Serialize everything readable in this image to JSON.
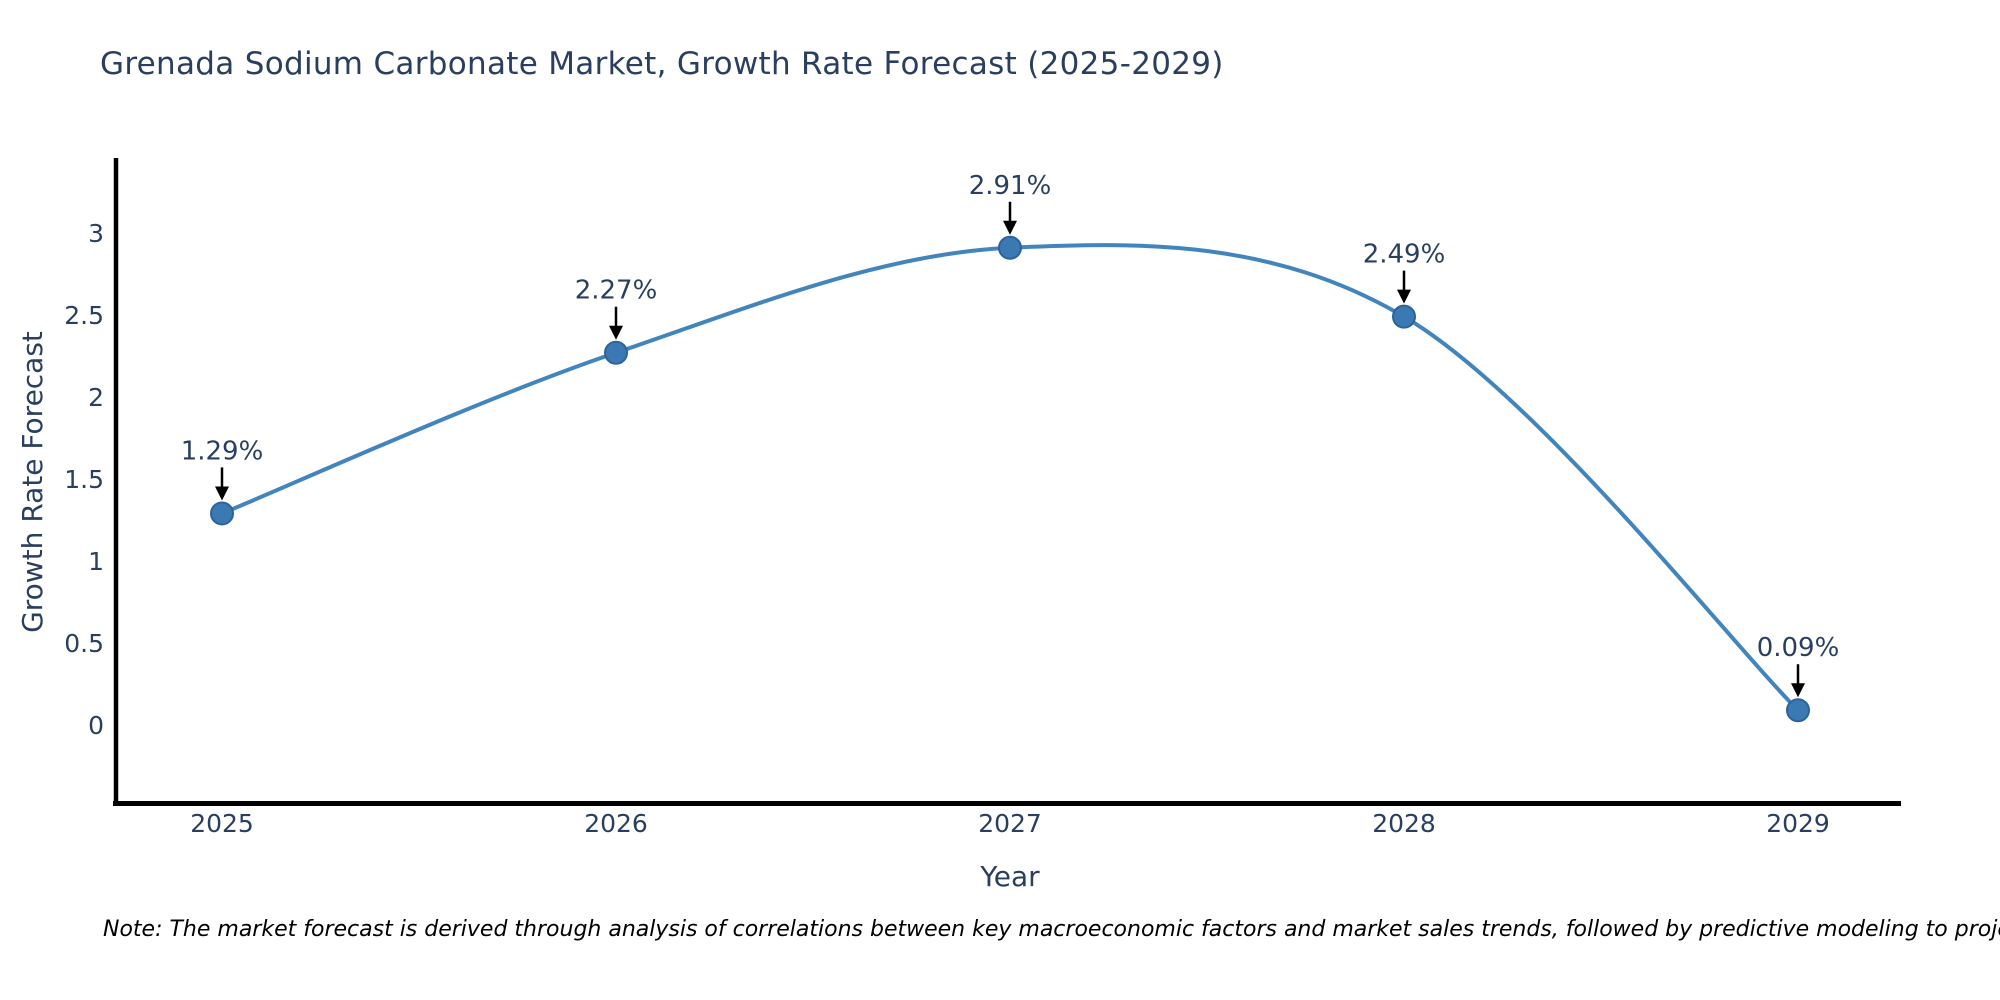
{
  "title": "Grenada Sodium Carbonate Market, Growth Rate Forecast (2025-2029)",
  "note": "Note: The market forecast is derived through analysis of correlations between key macroeconomic factors and market sales trends, followed by predictive modeling to project future sales",
  "colors": {
    "title_text": "#2a3f5f",
    "axis_text": "#2a3f5f",
    "axis_line": "#000000",
    "series_line": "#4285bd",
    "marker_fill": "#3b79b2",
    "marker_stroke": "#2d639a",
    "annotation_text": "#2a3f5f",
    "arrow": "#000000",
    "background": "#ffffff"
  },
  "chart_data": {
    "type": "line",
    "title": "Grenada Sodium Carbonate Market, Growth Rate Forecast (2025-2029)",
    "x": [
      2025,
      2026,
      2027,
      2028,
      2029
    ],
    "y": [
      1.29,
      2.27,
      2.91,
      2.49,
      0.09
    ],
    "point_labels": [
      "1.29%",
      "2.27%",
      "2.91%",
      "2.49%",
      "0.09%"
    ],
    "series_name": "Growth Rate Forecast",
    "xlabel": "Year",
    "ylabel": "Growth Rate Forecast",
    "yticks": [
      0,
      0.5,
      1,
      1.5,
      2,
      2.5,
      3
    ],
    "xticks": [
      "2025",
      "2026",
      "2027",
      "2028",
      "2029"
    ],
    "ylim": [
      -0.5,
      3.46
    ],
    "xlim": [
      2024.73,
      2029.26
    ],
    "line_shape": "spline",
    "grid": false,
    "legend": false,
    "annotations_have_arrows": true
  }
}
